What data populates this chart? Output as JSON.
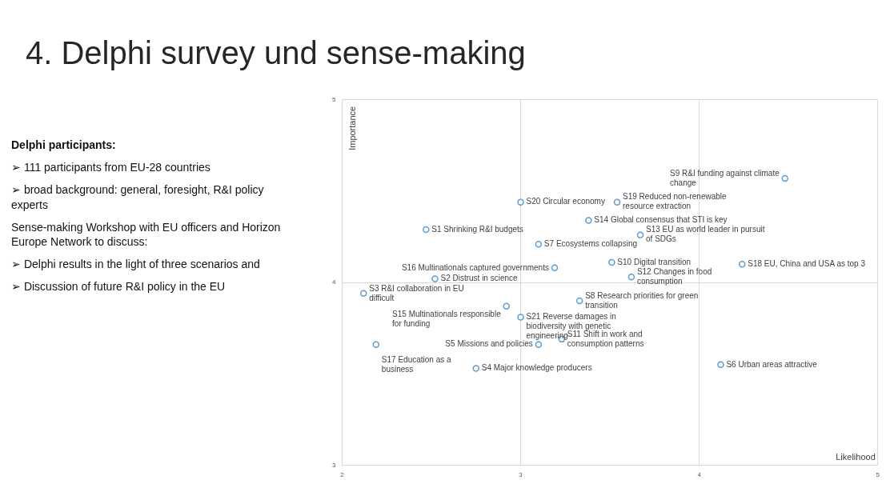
{
  "chart_data": {
    "type": "scatter",
    "title": "4. Delphi survey und sense-making",
    "xlabel": "Likelihood",
    "ylabel": "Importance",
    "xlim": [
      2,
      5
    ],
    "xticks": [
      2,
      3,
      4,
      5
    ],
    "ylim": [
      3,
      5
    ],
    "yticks": [
      3,
      4,
      5
    ],
    "grid": true,
    "marker": "circle",
    "annotations": [
      "Delphi participants:",
      "➢ 111 participants from EU-28 countries",
      "➢ broad background: general, foresight, R&I policy experts",
      "Sense-making Workshop with EU officers and Horizon Europe Network to discuss:",
      "➢ Delphi results in the light of three scenarios and",
      "➢ Discussion of future R&I policy in the EU"
    ],
    "series": [
      {
        "color": "#5b9bd5",
        "x": [
          2.47,
          2.52,
          2.12,
          2.75,
          3.1,
          4.12,
          3.1,
          3.33,
          4.48,
          3.51,
          3.23,
          3.62,
          3.67,
          3.38,
          2.92,
          3.19,
          2.19,
          4.24,
          3.54,
          3.0,
          3.0
        ],
        "values": [
          4.29,
          4.02,
          3.94,
          3.53,
          3.66,
          3.55,
          4.21,
          3.9,
          4.57,
          4.11,
          3.69,
          4.03,
          4.26,
          4.34,
          3.87,
          4.08,
          3.66,
          4.1,
          4.44,
          4.44,
          3.81
        ],
        "value_labels": [
          "S1 Shrinking R&I budgets",
          "S2 Distrust in science",
          "S3 R&I collaboration in EU difficult",
          "S4 Major knowledge producers",
          "S5 Missions and policies",
          "S6 Urban areas attractive",
          "S7 Ecosystems collapsing",
          "S8 Research priorities for green transition",
          "S9 R&I funding against climate change",
          "S10 Digital transition",
          "S11 Shift in work and consumption patterns",
          "S12 Changes in food consumption",
          "S13 EU as world leader in pursuit of SDGs",
          "S14 Global consensus that STI is key",
          "S15 Multinationals responsible for funding",
          "S16 Multinationals captured governments",
          "S17 Education as a business",
          "S18 EU, China and USA as top 3",
          "S19 Reduced non-renewable resource extraction",
          "S20 Circular economy",
          "S21 Reverse damages in biodiversity with genetic engineering"
        ]
      }
    ]
  }
}
